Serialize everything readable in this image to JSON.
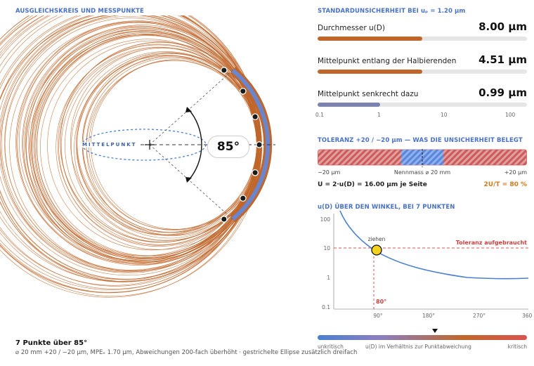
{
  "left": {
    "title": "AUSGLEICHSKREIS UND MESSPUNKTE",
    "center_label": "MITTELPUNKT",
    "angle_label": "85°",
    "footer_title": "7 Punkte über 85°",
    "footer_sub": "⌀ 20 mm +20 / −20 µm, MPEₑ 1.70 µm, Abweichungen 200-fach überhöht · gestrichelte Ellipse zusätzlich dreifach"
  },
  "std": {
    "title": "STANDARDUNSICHERHEIT BEI uₚ = 1.20 µm",
    "rows": [
      {
        "label": "Durchmesser u(D)",
        "value": "8.00 µm",
        "fraction": 0.5,
        "color": "#c0662a"
      },
      {
        "label": "Mittelpunkt entlang der Halbierenden",
        "value": "4.51 µm",
        "fraction": 0.5,
        "color": "#c0662a"
      },
      {
        "label": "Mittelpunkt senkrecht dazu",
        "value": "0.99 µm",
        "fraction": 0.3,
        "color": "#7a82ad"
      }
    ],
    "scale": [
      "0.1",
      "1",
      "10",
      "100"
    ]
  },
  "tol": {
    "title": "TOLERANZ +20 / −20 µm — WAS DIE UNSICHERHEIT BELEGT",
    "left": "−20 µm",
    "mid": "Nennmass ⌀ 20 mm",
    "right": "+20 µm",
    "formula": "U = 2·u(D) = 16.00 µm je Seite",
    "ratio": "2U/T = 80 %",
    "ratio_color": "#d07a1e"
  },
  "ud": {
    "title": "u(D) ÜBER DEN WINKEL, BEI 7 PUNKTEN",
    "y_ticks": [
      "100",
      "10",
      "1",
      "0.1"
    ],
    "x_ticks": [
      "90°",
      "180°",
      "270°",
      "360°"
    ],
    "marker_label": "ziehen",
    "threshold_label": "Toleranz aufgebraucht",
    "x_marker_label": "80°",
    "legend_left": "unkritisch",
    "legend_mid": "u(D) im Verhältnis zur Punktabweichung",
    "legend_right": "kritisch"
  }
}
